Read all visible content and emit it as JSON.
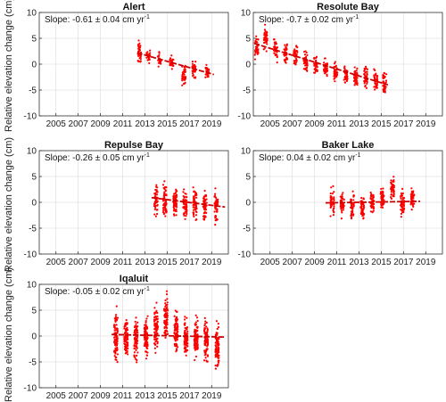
{
  "figure": {
    "ylabel": "Relative elevation change (cm)"
  },
  "chart_data": [
    {
      "type": "scatter",
      "title": "Alert",
      "annotation": "Slope: -0.61 ± 0.04 cm yr",
      "annotation_sup": "-1",
      "xticks": [
        "2005",
        "2007",
        "2009",
        "2011",
        "2013",
        "2015",
        "2017",
        "2019"
      ],
      "xlim": [
        2003.5,
        2020.5
      ],
      "ylim": [
        -10,
        10
      ],
      "yticks": [
        10,
        5,
        0,
        -5,
        -10
      ],
      "grid": true,
      "point_color": "#ff0000",
      "trend": {
        "x": [
          2012.3,
          2019.2
        ],
        "y": [
          2.2,
          -2.0
        ],
        "color": "#cc0000"
      },
      "clusters": [
        {
          "x": 2012.5,
          "mean": 2.2,
          "spread": 2.3,
          "count": 45
        },
        {
          "x": 2013.3,
          "mean": 1.4,
          "spread": 1.2,
          "count": 25
        },
        {
          "x": 2014.3,
          "mean": 1.0,
          "spread": 1.4,
          "count": 25
        },
        {
          "x": 2015.4,
          "mean": 0.3,
          "spread": 1.3,
          "count": 25
        },
        {
          "x": 2016.5,
          "mean": -2.0,
          "spread": 2.2,
          "count": 40
        },
        {
          "x": 2017.4,
          "mean": -1.0,
          "spread": 1.6,
          "count": 35
        },
        {
          "x": 2018.6,
          "mean": -1.5,
          "spread": 1.4,
          "count": 35
        }
      ]
    },
    {
      "type": "scatter",
      "title": "Resolute Bay",
      "annotation": "Slope: -0.7 ± 0.02 cm yr",
      "annotation_sup": "-1",
      "xticks": [
        "2005",
        "2007",
        "2009",
        "2011",
        "2013",
        "2015",
        "2017",
        "2019"
      ],
      "xlim": [
        2003.5,
        2020.5
      ],
      "ylim": [
        -10,
        10
      ],
      "yticks": [
        10,
        5,
        0,
        -5,
        -10
      ],
      "grid": true,
      "point_color": "#ff0000",
      "trend": {
        "x": [
          2003.6,
          2015.6
        ],
        "y": [
          4.0,
          -4.0
        ],
        "color": "#cc0000"
      },
      "clusters": [
        {
          "x": 2003.8,
          "mean": 3.5,
          "spread": 2.5,
          "count": 40
        },
        {
          "x": 2004.6,
          "mean": 5.0,
          "spread": 2.2,
          "count": 40
        },
        {
          "x": 2005.5,
          "mean": 3.0,
          "spread": 2.3,
          "count": 40
        },
        {
          "x": 2006.4,
          "mean": 2.2,
          "spread": 2.0,
          "count": 40
        },
        {
          "x": 2007.3,
          "mean": 1.6,
          "spread": 2.2,
          "count": 40
        },
        {
          "x": 2008.2,
          "mean": 0.5,
          "spread": 2.0,
          "count": 40
        },
        {
          "x": 2009.1,
          "mean": -0.5,
          "spread": 1.8,
          "count": 40
        },
        {
          "x": 2010.0,
          "mean": -1.0,
          "spread": 1.9,
          "count": 40
        },
        {
          "x": 2010.9,
          "mean": -1.6,
          "spread": 1.8,
          "count": 40
        },
        {
          "x": 2011.8,
          "mean": -2.0,
          "spread": 1.8,
          "count": 40
        },
        {
          "x": 2012.7,
          "mean": -2.5,
          "spread": 1.9,
          "count": 40
        },
        {
          "x": 2013.6,
          "mean": -2.6,
          "spread": 1.9,
          "count": 40
        },
        {
          "x": 2014.5,
          "mean": -3.2,
          "spread": 2.0,
          "count": 40
        },
        {
          "x": 2015.3,
          "mean": -3.5,
          "spread": 2.2,
          "count": 40
        }
      ]
    },
    {
      "type": "scatter",
      "title": "Repulse Bay",
      "annotation": "Slope: -0.26 ± 0.05 cm yr",
      "annotation_sup": "-1",
      "xticks": [
        "2005",
        "2007",
        "2009",
        "2011",
        "2013",
        "2015",
        "2017",
        "2019"
      ],
      "xlim": [
        2003.5,
        2020.5
      ],
      "ylim": [
        -10,
        10
      ],
      "yticks": [
        10,
        5,
        0,
        -5,
        -10
      ],
      "grid": true,
      "point_color": "#ff0000",
      "trend": {
        "x": [
          2013.6,
          2020.2
        ],
        "y": [
          0.9,
          -0.9
        ],
        "color": "#cc0000"
      },
      "clusters": [
        {
          "x": 2014.0,
          "mean": 0.5,
          "spread": 3.0,
          "count": 45
        },
        {
          "x": 2014.8,
          "mean": 0.5,
          "spread": 3.5,
          "count": 60
        },
        {
          "x": 2015.7,
          "mean": 0.0,
          "spread": 3.2,
          "count": 60
        },
        {
          "x": 2016.6,
          "mean": -0.3,
          "spread": 3.2,
          "count": 60
        },
        {
          "x": 2017.5,
          "mean": -0.4,
          "spread": 3.2,
          "count": 60
        },
        {
          "x": 2018.4,
          "mean": -0.6,
          "spread": 3.0,
          "count": 60
        },
        {
          "x": 2019.4,
          "mean": -1.0,
          "spread": 2.8,
          "count": 55
        }
      ]
    },
    {
      "type": "scatter",
      "title": "Baker Lake",
      "annotation": "Slope: 0.04 ± 0.02 cm yr",
      "annotation_sup": "-1",
      "xticks": [
        "2005",
        "2007",
        "2009",
        "2011",
        "2013",
        "2015",
        "2017",
        "2019"
      ],
      "xlim": [
        2003.5,
        2020.5
      ],
      "ylim": [
        -10,
        10
      ],
      "yticks": [
        10,
        5,
        0,
        -5,
        -10
      ],
      "grid": true,
      "point_color": "#ff0000",
      "trend": {
        "x": [
          2010.0,
          2018.5
        ],
        "y": [
          -0.1,
          0.2
        ],
        "color": "#cc0000"
      },
      "clusters": [
        {
          "x": 2010.6,
          "mean": 0.0,
          "spread": 2.5,
          "count": 45
        },
        {
          "x": 2011.5,
          "mean": -0.4,
          "spread": 2.4,
          "count": 50
        },
        {
          "x": 2012.4,
          "mean": -0.5,
          "spread": 2.4,
          "count": 50
        },
        {
          "x": 2013.3,
          "mean": -0.8,
          "spread": 2.2,
          "count": 50
        },
        {
          "x": 2014.2,
          "mean": 0.0,
          "spread": 2.2,
          "count": 50
        },
        {
          "x": 2015.1,
          "mean": 0.6,
          "spread": 2.3,
          "count": 50
        },
        {
          "x": 2016.0,
          "mean": 2.5,
          "spread": 2.2,
          "count": 50
        },
        {
          "x": 2016.9,
          "mean": -0.2,
          "spread": 2.2,
          "count": 50
        },
        {
          "x": 2017.8,
          "mean": 0.5,
          "spread": 2.2,
          "count": 45
        }
      ]
    },
    {
      "type": "scatter",
      "title": "Iqaluit",
      "annotation": "Slope: -0.05 ± 0.02 cm yr",
      "annotation_sup": "-1",
      "xticks": [
        "2005",
        "2007",
        "2009",
        "2011",
        "2013",
        "2015",
        "2017",
        "2019"
      ],
      "xlim": [
        2003.5,
        2020.5
      ],
      "ylim": [
        -10,
        10
      ],
      "yticks": [
        10,
        5,
        0,
        -5,
        -10
      ],
      "grid": true,
      "point_color": "#ff0000",
      "trend": {
        "x": [
          2010.0,
          2020.2
        ],
        "y": [
          0.3,
          -0.2
        ],
        "color": "#cc0000"
      },
      "clusters": [
        {
          "x": 2010.4,
          "mean": 0.0,
          "spread": 4.5,
          "count": 90
        },
        {
          "x": 2011.3,
          "mean": -0.5,
          "spread": 4.0,
          "count": 90
        },
        {
          "x": 2012.2,
          "mean": -0.5,
          "spread": 4.0,
          "count": 90
        },
        {
          "x": 2013.1,
          "mean": -0.3,
          "spread": 4.0,
          "count": 90
        },
        {
          "x": 2014.0,
          "mean": 1.5,
          "spread": 4.0,
          "count": 90
        },
        {
          "x": 2014.9,
          "mean": 3.5,
          "spread": 4.0,
          "count": 90
        },
        {
          "x": 2015.8,
          "mean": 1.0,
          "spread": 4.0,
          "count": 90
        },
        {
          "x": 2016.7,
          "mean": -0.3,
          "spread": 4.0,
          "count": 90
        },
        {
          "x": 2017.6,
          "mean": -0.5,
          "spread": 4.0,
          "count": 90
        },
        {
          "x": 2018.5,
          "mean": -1.0,
          "spread": 4.0,
          "count": 90
        },
        {
          "x": 2019.5,
          "mean": -2.5,
          "spread": 4.0,
          "count": 90
        }
      ]
    }
  ]
}
